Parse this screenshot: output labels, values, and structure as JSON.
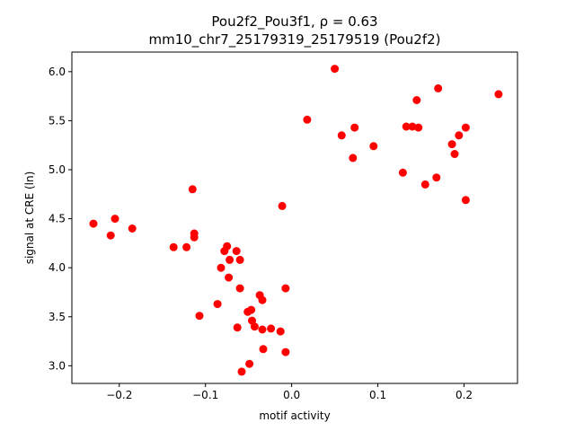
{
  "chart_data": {
    "type": "scatter",
    "title_line1": "Pou2f2_Pou3f1, ρ = 0.63",
    "title_line2": "mm10_chr7_25179319_25179519 (Pou2f2)",
    "xlabel": "motif activity",
    "ylabel": "signal at CRE (ln)",
    "xlim": [
      -0.255,
      0.262
    ],
    "ylim": [
      2.82,
      6.2
    ],
    "xticks": [
      -0.2,
      -0.1,
      0.0,
      0.1,
      0.2
    ],
    "xtick_labels": [
      "−0.2",
      "−0.1",
      "0.0",
      "0.1",
      "0.2"
    ],
    "yticks": [
      3.0,
      3.5,
      4.0,
      4.5,
      5.0,
      5.5,
      6.0
    ],
    "ytick_labels": [
      "3.0",
      "3.5",
      "4.0",
      "4.5",
      "5.0",
      "5.5",
      "6.0"
    ],
    "grid": false,
    "marker_color": "#ff0000",
    "points": [
      [
        -0.23,
        4.45
      ],
      [
        -0.21,
        4.33
      ],
      [
        -0.205,
        4.5
      ],
      [
        -0.185,
        4.4
      ],
      [
        -0.137,
        4.21
      ],
      [
        -0.122,
        4.21
      ],
      [
        -0.115,
        4.8
      ],
      [
        -0.113,
        4.35
      ],
      [
        -0.113,
        4.31
      ],
      [
        -0.107,
        3.51
      ],
      [
        -0.086,
        3.63
      ],
      [
        -0.082,
        4.0
      ],
      [
        -0.078,
        4.17
      ],
      [
        -0.075,
        4.22
      ],
      [
        -0.073,
        3.9
      ],
      [
        -0.072,
        4.08
      ],
      [
        -0.064,
        4.17
      ],
      [
        -0.063,
        3.39
      ],
      [
        -0.06,
        4.08
      ],
      [
        -0.06,
        3.79
      ],
      [
        -0.058,
        2.94
      ],
      [
        -0.051,
        3.55
      ],
      [
        -0.049,
        3.02
      ],
      [
        -0.047,
        3.57
      ],
      [
        -0.046,
        3.46
      ],
      [
        -0.043,
        3.4
      ],
      [
        -0.037,
        3.72
      ],
      [
        -0.034,
        3.67
      ],
      [
        -0.034,
        3.37
      ],
      [
        -0.033,
        3.17
      ],
      [
        -0.024,
        3.38
      ],
      [
        -0.013,
        3.35
      ],
      [
        -0.011,
        4.63
      ],
      [
        -0.007,
        3.79
      ],
      [
        -0.007,
        3.14
      ],
      [
        0.018,
        5.51
      ],
      [
        0.05,
        6.03
      ],
      [
        0.058,
        5.35
      ],
      [
        0.071,
        5.12
      ],
      [
        0.073,
        5.43
      ],
      [
        0.095,
        5.24
      ],
      [
        0.129,
        4.97
      ],
      [
        0.133,
        5.44
      ],
      [
        0.14,
        5.44
      ],
      [
        0.145,
        5.71
      ],
      [
        0.147,
        5.43
      ],
      [
        0.155,
        4.85
      ],
      [
        0.168,
        4.92
      ],
      [
        0.17,
        5.83
      ],
      [
        0.186,
        5.26
      ],
      [
        0.189,
        5.16
      ],
      [
        0.194,
        5.35
      ],
      [
        0.202,
        5.43
      ],
      [
        0.202,
        4.69
      ],
      [
        0.24,
        5.77
      ]
    ]
  }
}
